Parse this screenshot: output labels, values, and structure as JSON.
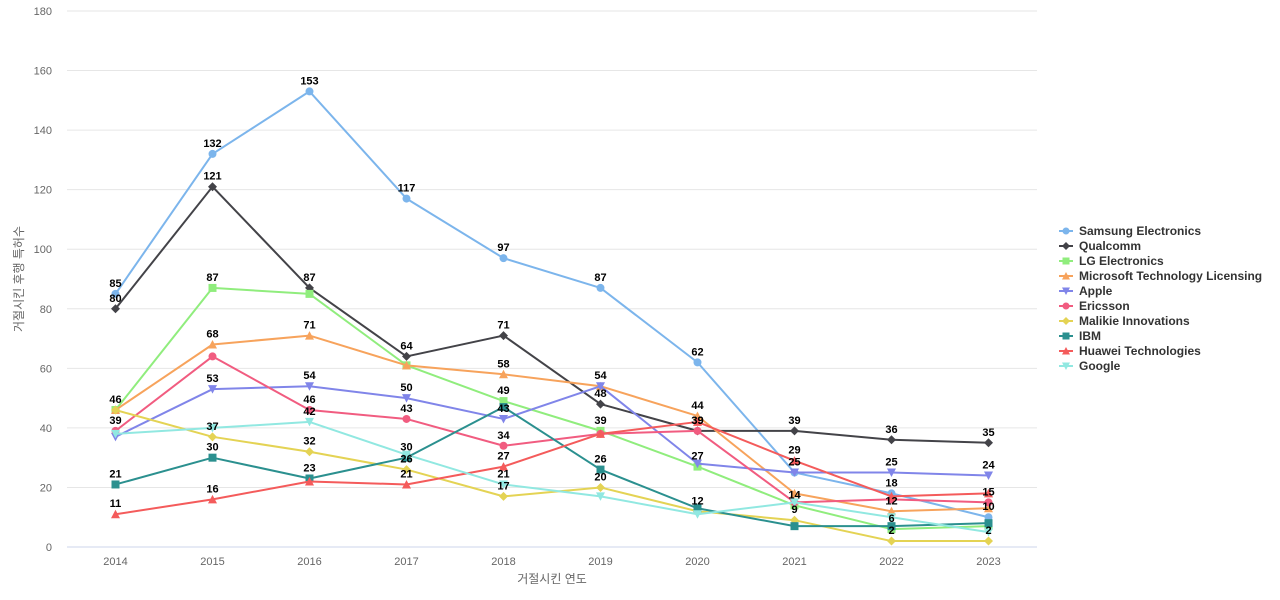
{
  "chart_data": {
    "type": "line",
    "title": "",
    "xlabel": "거절시킨 연도",
    "ylabel": "거절시킨 후행 특허수",
    "ylim": [
      0,
      180
    ],
    "yticks": [
      0,
      20,
      40,
      60,
      80,
      100,
      120,
      140,
      160,
      180
    ],
    "grid": true,
    "legend_position": "right",
    "categories": [
      "2014",
      "2015",
      "2016",
      "2017",
      "2018",
      "2019",
      "2020",
      "2021",
      "2022",
      "2023"
    ],
    "series": [
      {
        "name": "Samsung Electronics",
        "color": "#7cb5ec",
        "marker": "circle",
        "values": [
          85,
          132,
          153,
          117,
          97,
          87,
          62,
          25,
          18,
          10
        ]
      },
      {
        "name": "Qualcomm",
        "color": "#434348",
        "marker": "diamond",
        "values": [
          80,
          121,
          87,
          64,
          71,
          48,
          39,
          39,
          36,
          35
        ]
      },
      {
        "name": "LG Electronics",
        "color": "#90ed7d",
        "marker": "square",
        "values": [
          46,
          87,
          85,
          61,
          49,
          39,
          27,
          14,
          6,
          7
        ]
      },
      {
        "name": "Microsoft Technology Licensing",
        "color": "#f7a35c",
        "marker": "triangle",
        "values": [
          46,
          68,
          71,
          61,
          58,
          54,
          44,
          18,
          12,
          13
        ]
      },
      {
        "name": "Apple",
        "color": "#8085e9",
        "marker": "triangle-down",
        "values": [
          37,
          53,
          54,
          50,
          43,
          54,
          28,
          25,
          25,
          24
        ]
      },
      {
        "name": "Ericsson",
        "color": "#f15c80",
        "marker": "circle",
        "values": [
          39,
          64,
          46,
          43,
          34,
          38,
          39,
          15,
          16,
          15
        ]
      },
      {
        "name": "Malikie Innovations",
        "color": "#e4d354",
        "marker": "diamond",
        "values": [
          46,
          37,
          32,
          26,
          17,
          20,
          12,
          9,
          2,
          2
        ]
      },
      {
        "name": "IBM",
        "color": "#2b908f",
        "marker": "square",
        "values": [
          21,
          30,
          23,
          30,
          47,
          26,
          13,
          7,
          7,
          8
        ]
      },
      {
        "name": "Huawei Technologies",
        "color": "#f45b5b",
        "marker": "triangle",
        "values": [
          11,
          16,
          22,
          21,
          27,
          38,
          42,
          29,
          17,
          18
        ]
      },
      {
        "name": "Google",
        "color": "#91e8e1",
        "marker": "triangle-down",
        "values": [
          38,
          40,
          42,
          31,
          21,
          17,
          11,
          15,
          10,
          5
        ]
      }
    ],
    "data_labels": [
      {
        "category_index": 0,
        "value": 85,
        "text": "85"
      },
      {
        "category_index": 1,
        "value": 132,
        "text": "132"
      },
      {
        "category_index": 2,
        "value": 153,
        "text": "153"
      },
      {
        "category_index": 3,
        "value": 117,
        "text": "117"
      },
      {
        "category_index": 4,
        "value": 97,
        "text": "97"
      },
      {
        "category_index": 5,
        "value": 87,
        "text": "87"
      },
      {
        "category_index": 6,
        "value": 62,
        "text": "62"
      },
      {
        "category_index": 7,
        "value": 29,
        "text": "29"
      },
      {
        "category_index": 7,
        "value": 25,
        "text": "25"
      },
      {
        "category_index": 8,
        "value": 18,
        "text": "18"
      },
      {
        "category_index": 9,
        "value": 10,
        "text": "10"
      },
      {
        "category_index": 0,
        "value": 80,
        "text": "80"
      },
      {
        "category_index": 1,
        "value": 121,
        "text": "121"
      },
      {
        "category_index": 2,
        "value": 87,
        "text": "87"
      },
      {
        "category_index": 3,
        "value": 64,
        "text": "64"
      },
      {
        "category_index": 4,
        "value": 71,
        "text": "71"
      },
      {
        "category_index": 5,
        "value": 48,
        "text": "48"
      },
      {
        "category_index": 6,
        "value": 39,
        "text": "39"
      },
      {
        "category_index": 7,
        "value": 39,
        "text": "39"
      },
      {
        "category_index": 8,
        "value": 36,
        "text": "36"
      },
      {
        "category_index": 9,
        "value": 35,
        "text": "35"
      },
      {
        "category_index": 1,
        "value": 87,
        "text": "87"
      },
      {
        "category_index": 4,
        "value": 49,
        "text": "49"
      },
      {
        "category_index": 5,
        "value": 39,
        "text": "39"
      },
      {
        "category_index": 6,
        "value": 27,
        "text": "27"
      },
      {
        "category_index": 7,
        "value": 14,
        "text": "14"
      },
      {
        "category_index": 8,
        "value": 6,
        "text": "6"
      },
      {
        "category_index": 1,
        "value": 68,
        "text": "68"
      },
      {
        "category_index": 2,
        "value": 71,
        "text": "71"
      },
      {
        "category_index": 4,
        "value": 58,
        "text": "58"
      },
      {
        "category_index": 5,
        "value": 54,
        "text": "54"
      },
      {
        "category_index": 6,
        "value": 44,
        "text": "44"
      },
      {
        "category_index": 8,
        "value": 12,
        "text": "12"
      },
      {
        "category_index": 1,
        "value": 53,
        "text": "53"
      },
      {
        "category_index": 2,
        "value": 54,
        "text": "54"
      },
      {
        "category_index": 3,
        "value": 50,
        "text": "50"
      },
      {
        "category_index": 4,
        "value": 43,
        "text": "43"
      },
      {
        "category_index": 8,
        "value": 25,
        "text": "25"
      },
      {
        "category_index": 9,
        "value": 24,
        "text": "24"
      },
      {
        "category_index": 0,
        "value": 39,
        "text": "39"
      },
      {
        "category_index": 2,
        "value": 46,
        "text": "46"
      },
      {
        "category_index": 3,
        "value": 43,
        "text": "43"
      },
      {
        "category_index": 4,
        "value": 34,
        "text": "34"
      },
      {
        "category_index": 6,
        "value": 39,
        "text": "39"
      },
      {
        "category_index": 9,
        "value": 15,
        "text": "15"
      },
      {
        "category_index": 0,
        "value": 46,
        "text": "46"
      },
      {
        "category_index": 1,
        "value": 37,
        "text": "37"
      },
      {
        "category_index": 2,
        "value": 32,
        "text": "32"
      },
      {
        "category_index": 3,
        "value": 26,
        "text": "26"
      },
      {
        "category_index": 4,
        "value": 17,
        "text": "17"
      },
      {
        "category_index": 5,
        "value": 20,
        "text": "20"
      },
      {
        "category_index": 6,
        "value": 12,
        "text": "12"
      },
      {
        "category_index": 7,
        "value": 9,
        "text": "9"
      },
      {
        "category_index": 8,
        "value": 2,
        "text": "2"
      },
      {
        "category_index": 9,
        "value": 2,
        "text": "2"
      },
      {
        "category_index": 0,
        "value": 21,
        "text": "21"
      },
      {
        "category_index": 1,
        "value": 30,
        "text": "30"
      },
      {
        "category_index": 2,
        "value": 23,
        "text": "23"
      },
      {
        "category_index": 3,
        "value": 30,
        "text": "30"
      },
      {
        "category_index": 5,
        "value": 26,
        "text": "26"
      },
      {
        "category_index": 0,
        "value": 11,
        "text": "11"
      },
      {
        "category_index": 1,
        "value": 16,
        "text": "16"
      },
      {
        "category_index": 3,
        "value": 21,
        "text": "21"
      },
      {
        "category_index": 4,
        "value": 27,
        "text": "27"
      },
      {
        "category_index": 2,
        "value": 42,
        "text": "42"
      },
      {
        "category_index": 4,
        "value": 21,
        "text": "21"
      }
    ]
  }
}
